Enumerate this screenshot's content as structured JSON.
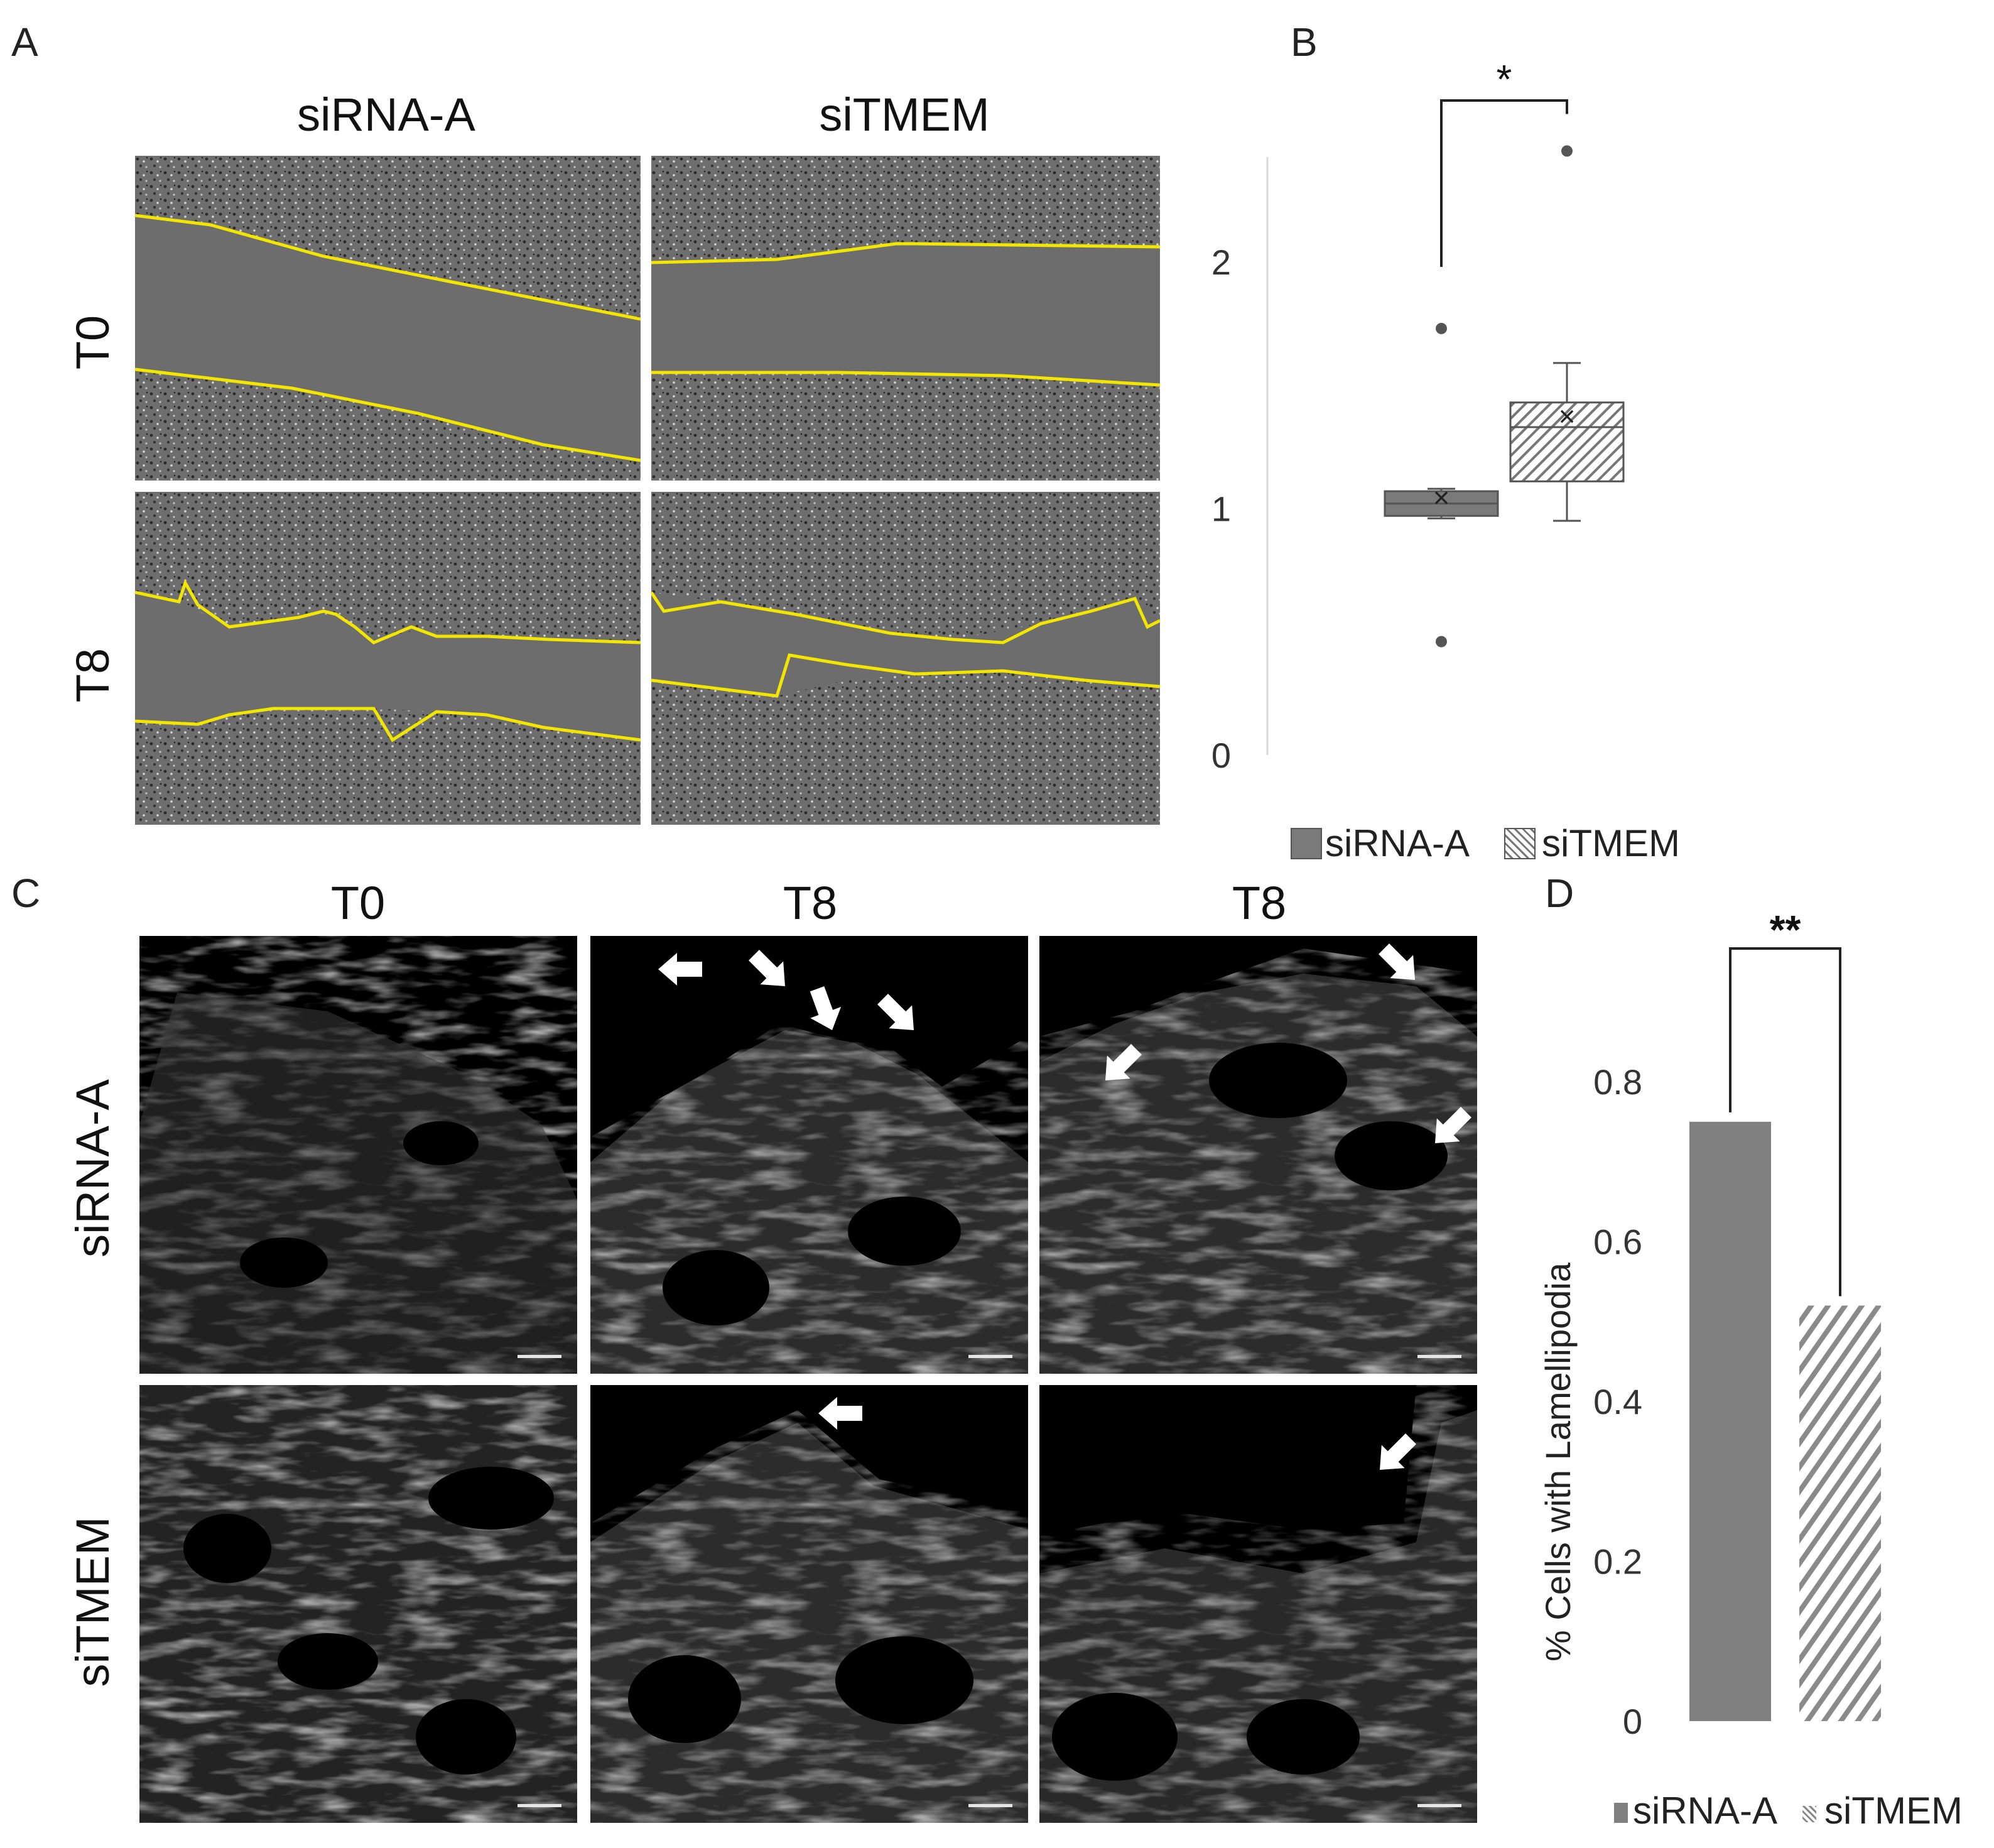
{
  "panels": {
    "A": {
      "letter": "A",
      "columns": [
        "siRNA-A",
        "siTMEM"
      ],
      "rows": [
        "T0",
        "T8"
      ]
    },
    "B": {
      "letter": "B",
      "significance": "*",
      "legend": [
        "siRNA-A",
        "siTMEM"
      ]
    },
    "C": {
      "letter": "C",
      "columns": [
        "T0",
        "T8",
        "T8"
      ],
      "rows": [
        "siRNA-A",
        "siTMEM"
      ]
    },
    "D": {
      "letter": "D",
      "significance": "**",
      "legend": [
        "siRNA-A",
        "siTMEM"
      ]
    }
  },
  "colors": {
    "wound_edge": "#f2e600",
    "bar_fill": "#808080",
    "axis": "#d9d9d9"
  },
  "chart_data": [
    {
      "panel": "B",
      "type": "box",
      "title": "",
      "xlabel": "",
      "ylabel": "",
      "ylim": [
        0,
        2.4
      ],
      "yticks": [
        0,
        1,
        2
      ],
      "ytick_labels": [
        "0",
        "1",
        "2"
      ],
      "series": [
        {
          "name": "siRNA-A",
          "pattern": "solid",
          "whisker_low": 0.96,
          "q1": 0.97,
          "median": 1.02,
          "q3": 1.07,
          "whisker_high": 1.08,
          "mean": 1.04,
          "outliers": [
            1.73,
            0.46
          ]
        },
        {
          "name": "siTMEM",
          "pattern": "hatched",
          "whisker_low": 0.95,
          "q1": 1.11,
          "median": 1.33,
          "q3": 1.43,
          "whisker_high": 1.59,
          "mean": 1.37,
          "outliers": [
            2.45
          ]
        }
      ],
      "significance": "*",
      "legend_position": "bottom"
    },
    {
      "panel": "D",
      "type": "bar",
      "title": "",
      "xlabel": "",
      "ylabel": "% Cells with Lamellipodia",
      "ylim": [
        0,
        0.9
      ],
      "yticks": [
        0,
        0.2,
        0.4,
        0.6,
        0.8
      ],
      "ytick_labels": [
        "0",
        "0.2",
        "0.4",
        "0.6",
        "0.8"
      ],
      "categories": [
        "siRNA-A",
        "siTMEM"
      ],
      "values": [
        0.75,
        0.52
      ],
      "patterns": [
        "solid",
        "hatched"
      ],
      "significance": "**",
      "legend_position": "bottom"
    }
  ]
}
